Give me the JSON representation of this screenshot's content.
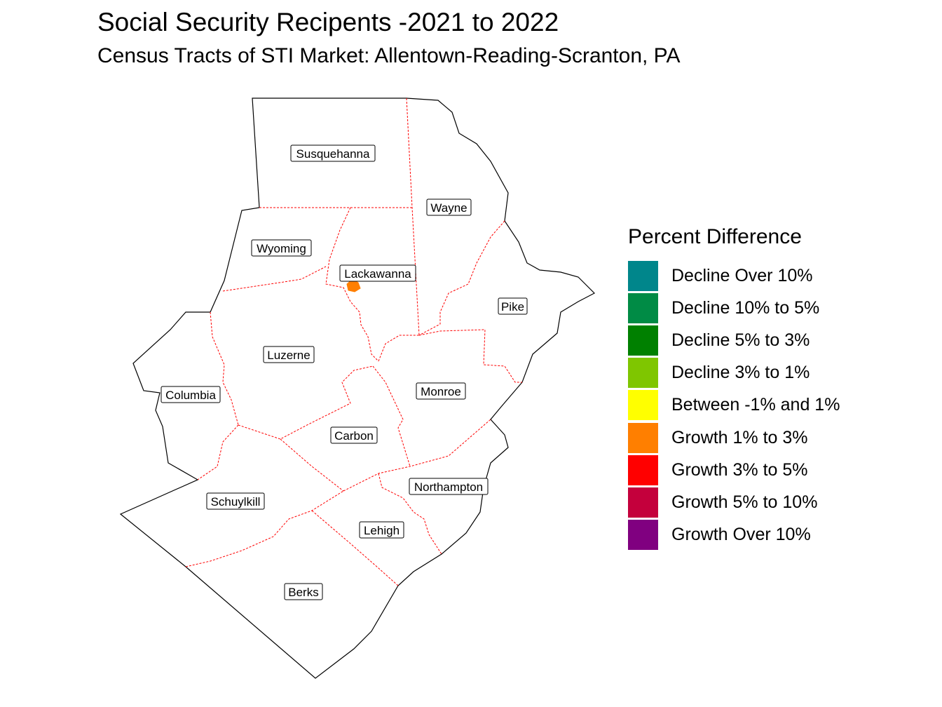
{
  "title": "Social Security Recipents -2021 to 2022",
  "subtitle": "Census Tracts of STI Market: Allentown-Reading-Scranton, PA",
  "legend": {
    "title": "Percent Difference",
    "items": [
      {
        "label": "Decline Over 10%",
        "color": "#00868B"
      },
      {
        "label": "Decline 10% to 5%",
        "color": "#008B45"
      },
      {
        "label": "Decline 5% to 3%",
        "color": "#008000"
      },
      {
        "label": "Decline 3% to 1%",
        "color": "#7FC600"
      },
      {
        "label": "Between -1% and 1%",
        "color": "#FFFF00"
      },
      {
        "label": "Growth 1% to 3%",
        "color": "#FF7F00"
      },
      {
        "label": "Growth 3% to 5%",
        "color": "#FF0000"
      },
      {
        "label": "Growth 5% to 10%",
        "color": "#C4003C"
      },
      {
        "label": "Growth Over 10%",
        "color": "#800080"
      }
    ]
  },
  "counties": {
    "susquehanna": "Susquehanna",
    "wayne": "Wayne",
    "wyoming": "Wyoming",
    "lackawanna": "Lackawanna",
    "pike": "Pike",
    "luzerne": "Luzerne",
    "columbia": "Columbia",
    "monroe": "Monroe",
    "carbon": "Carbon",
    "northampton": "Northampton",
    "schuylkill": "Schuylkill",
    "lehigh": "Lehigh",
    "berks": "Berks"
  },
  "highlight": {
    "category": "Growth 1% to 3%",
    "color": "#FF7F00"
  },
  "colors": {
    "outer_border": "#000000",
    "county_border": "#FF0000"
  }
}
